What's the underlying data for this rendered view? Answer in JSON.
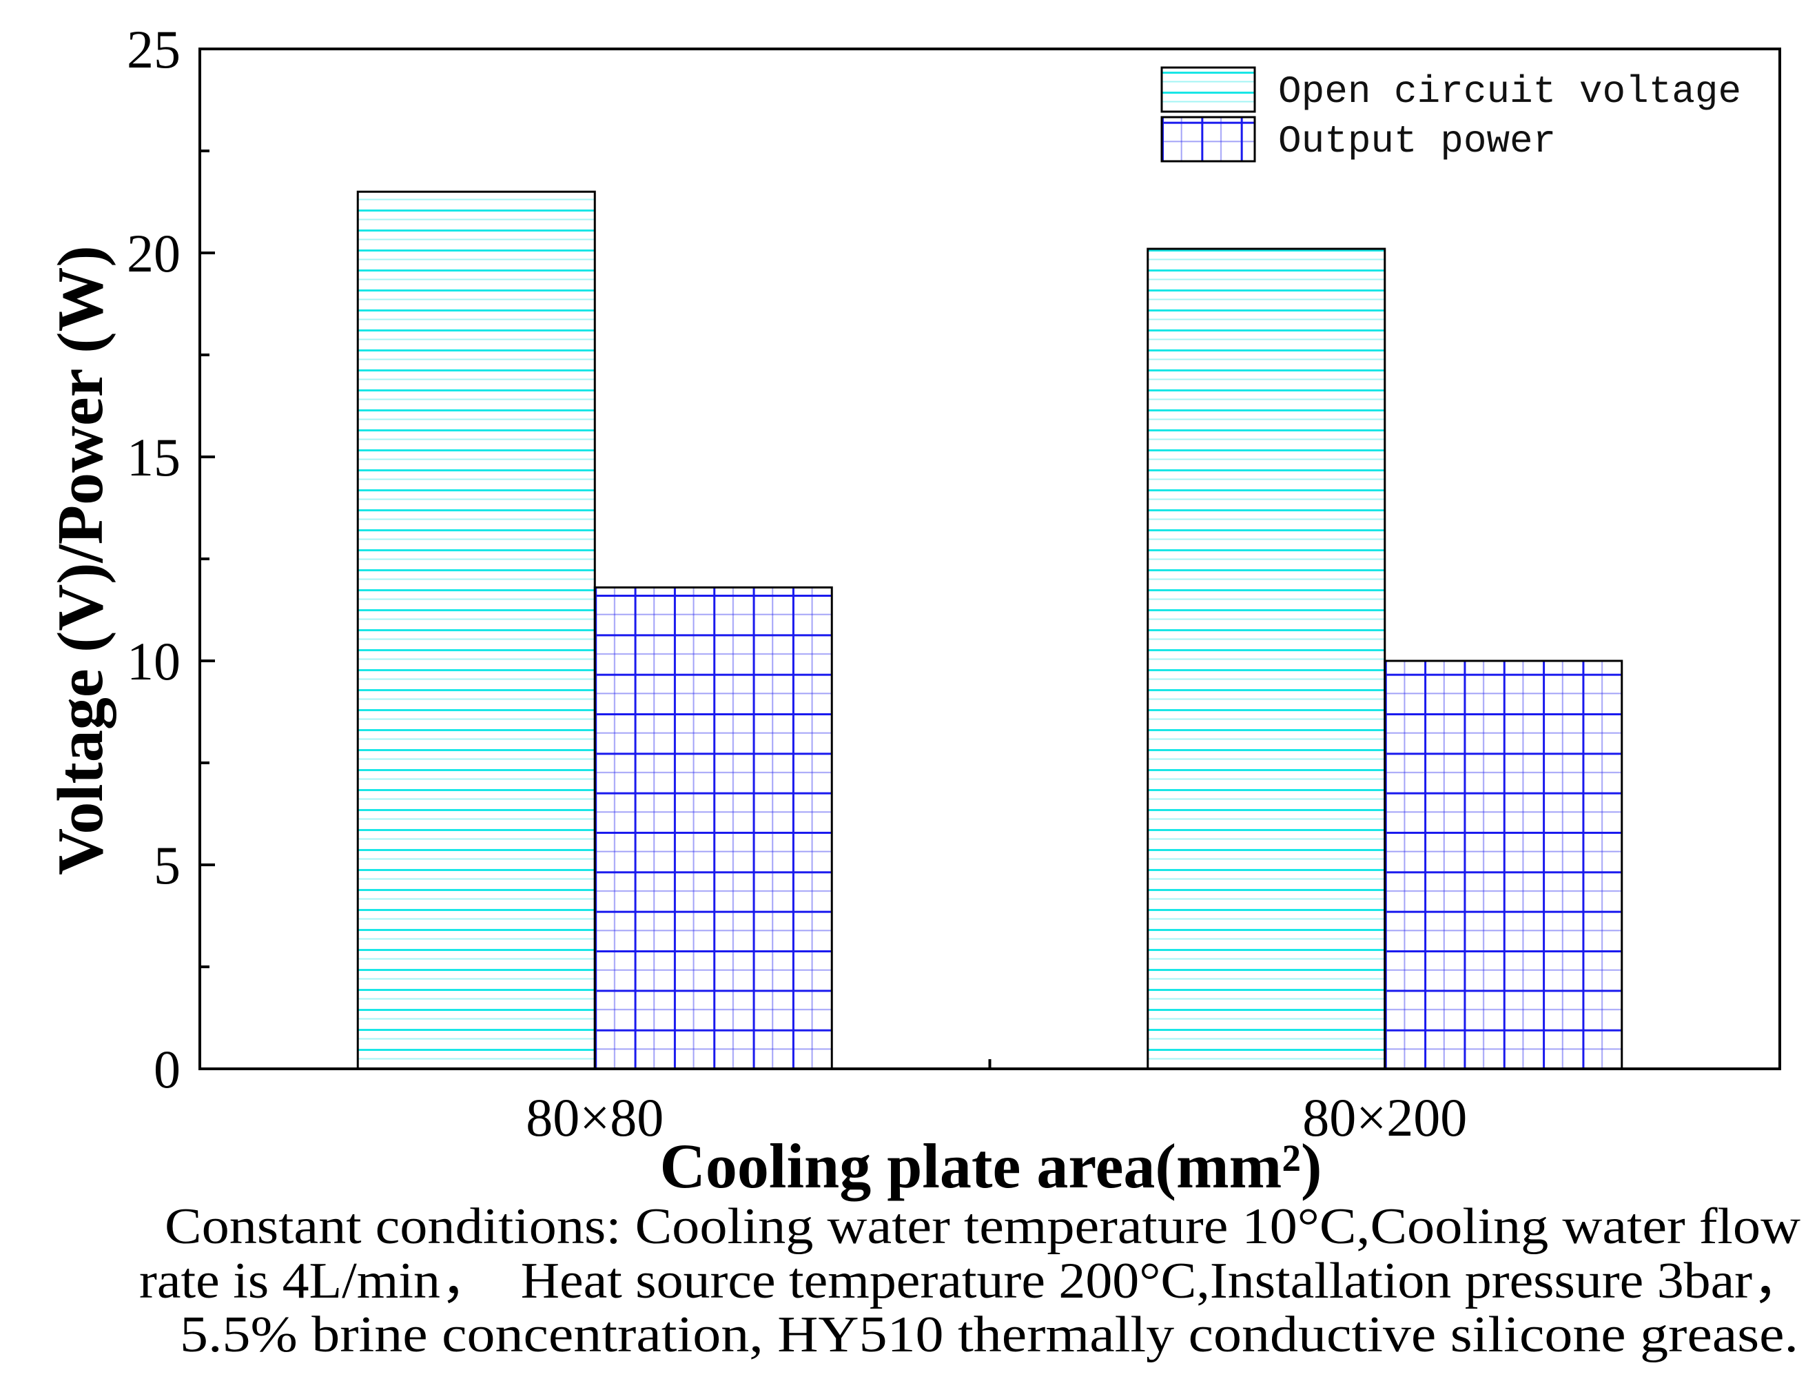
{
  "chart_data": {
    "type": "bar",
    "categories": [
      "80×80",
      "80×200"
    ],
    "series": [
      {
        "name": "Open circuit voltage",
        "values": [
          21.5,
          20.1
        ],
        "color": "#19e6e6"
      },
      {
        "name": "Output power",
        "values": [
          11.8,
          10.0
        ],
        "color": "#1a1aee"
      }
    ],
    "xlabel": "Cooling plate area(mm²)",
    "ylabel": "Voltage (V)/Power (W)",
    "ylim": [
      0,
      25
    ],
    "yticks": [
      0,
      5,
      10,
      15,
      20,
      25
    ],
    "grid": false,
    "legend_position": "top-right"
  },
  "caption": {
    "lines": [
      "Constant conditions: Cooling water temperature 10°C,Cooling water flow",
      "rate is 4L/min，  Heat source temperature 200°C,Installation pressure 3bar，",
      "5.5% brine concentration, HY510 thermally conductive silicone grease."
    ]
  }
}
